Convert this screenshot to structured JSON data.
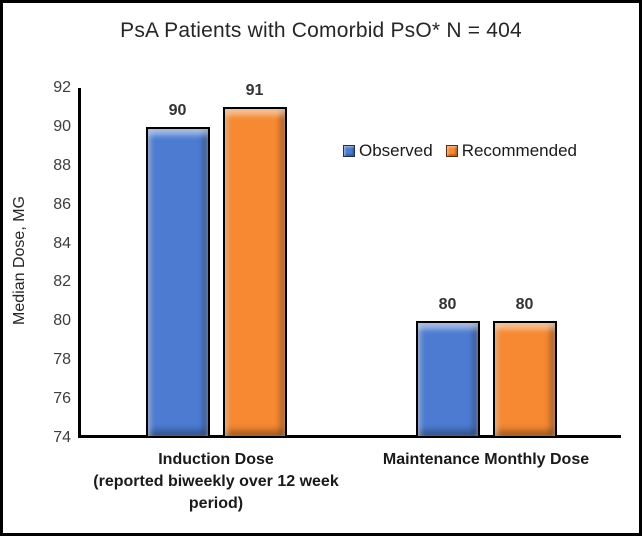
{
  "frame": {
    "border_color": "#000000",
    "background": "#ffffff"
  },
  "chart_data": {
    "type": "bar",
    "title": "PsA Patients with Comorbid PsO* N = 404",
    "ylabel": "Median Dose, MG",
    "xlabel": "",
    "ylim": [
      74,
      92
    ],
    "yticks": [
      92,
      90,
      88,
      86,
      84,
      82,
      80,
      78,
      76,
      74
    ],
    "grid": false,
    "data_labels": true,
    "legend_position": "inside-upper-middle",
    "categories": [
      "Induction Dose\n(reported biweekly over 12 week\nperiod)",
      "Maintenance Monthly Dose"
    ],
    "series": [
      {
        "name": "Observed",
        "values": [
          90,
          80
        ],
        "color": "#4C7BD1",
        "swatch_border": "#1F3050"
      },
      {
        "name": "Recommended",
        "values": [
          91,
          80
        ],
        "color": "#F68932",
        "swatch_border": "#5C2E0E"
      }
    ],
    "bar_border_color": "#000000",
    "axis_color": "#000000",
    "tick_color": "#3d3d3d",
    "title_color": "#262626"
  }
}
